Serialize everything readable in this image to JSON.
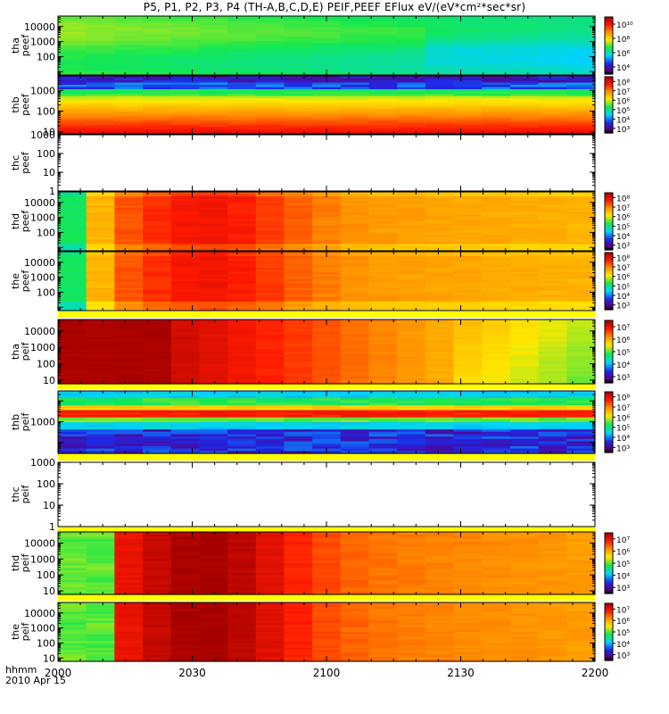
{
  "title": "P5, P1, P2, P3, P4 (TH-A,B,C,D,E) PEIF,PEEF EFlux eV/(eV*cm²*sec*sr)",
  "x_label_hhmm": "hhmm",
  "x_label_date": "2010 Apr 15",
  "colors": {
    "deep_red": "#a80000",
    "red": "#ff1a00",
    "orange": "#ff8c00",
    "yellow": "#ffe800",
    "green": "#18e850",
    "cyan": "#00d8ff",
    "blue": "#1840e8",
    "black": "#000000",
    "highlight": "#ffff00"
  },
  "chart_data": {
    "type": "heatmap",
    "title": "P5, P1, P2, P3, P4 (TH-A,B,C,D,E) PEIF,PEEF EFlux eV/(eV*cm²*sec*sr)",
    "x_ticks": [
      "2000",
      "2030",
      "2100",
      "2130",
      "2200"
    ],
    "x_range": [
      "20:00",
      "22:00"
    ],
    "panels": [
      {
        "label": "tha peef",
        "ylim": [
          6,
          50000
        ],
        "y_scale": "log",
        "yticks": [
          "10000",
          "1000",
          "100"
        ],
        "colorbar_ticks": [
          "10¹⁰",
          "10⁸",
          "10⁶",
          "10⁴"
        ],
        "description": "green spectrogram, brighter green early, cyan-green later"
      },
      {
        "label": "thb peef",
        "ylim": [
          8,
          5000
        ],
        "y_scale": "log",
        "yticks": [
          "1000",
          "100",
          "10"
        ],
        "colorbar_ticks": [
          "10⁸",
          "10⁷",
          "10⁶",
          "10⁵",
          "10⁴",
          "10³"
        ],
        "description": "blue/black top band, green-yellow-orange-red toward low energy"
      },
      {
        "label": "thc peef",
        "ylim": [
          1,
          1000
        ],
        "y_scale": "log",
        "yticks": [
          "1000",
          "100",
          "10",
          "1"
        ],
        "description": "no data"
      },
      {
        "label": "thd peef",
        "ylim": [
          6,
          50000
        ],
        "y_scale": "log",
        "yticks": [
          "10000",
          "1000",
          "100"
        ],
        "colorbar_ticks": [
          "10⁸",
          "10⁷",
          "10⁶",
          "10⁵",
          "10⁴",
          "10³"
        ],
        "description": "yellow-green early, red peak 2010-2040, orange-yellow later"
      },
      {
        "label": "the peef",
        "ylim": [
          6,
          50000
        ],
        "y_scale": "log",
        "yticks": [
          "10000",
          "1000",
          "100"
        ],
        "colorbar_ticks": [
          "10⁸",
          "10⁷",
          "10⁶",
          "10⁵",
          "10⁴",
          "10³"
        ],
        "description": "yellow-green early, red peak 2010-2040, orange-yellow later"
      },
      {
        "label": "tha peif",
        "ylim": [
          6,
          50000
        ],
        "y_scale": "log",
        "yticks": [
          "10000",
          "1000",
          "100",
          "10"
        ],
        "colorbar_ticks": [
          "10⁷",
          "10⁶",
          "10⁵",
          "10⁴",
          "10³"
        ],
        "description": "deep red early fading to orange, yellow and green late"
      },
      {
        "label": "thb peif",
        "ylim": [
          30,
          30000
        ],
        "y_scale": "log",
        "yticks": [
          "1000"
        ],
        "colorbar_ticks": [
          "10⁸",
          "10⁷",
          "10⁶",
          "10⁵",
          "10⁴",
          "10³"
        ],
        "description": "horizontal bands: cyan top, yellow/red middle, blue/black bottom"
      },
      {
        "label": "thc peif",
        "ylim": [
          1,
          1000
        ],
        "y_scale": "log",
        "yticks": [
          "1000",
          "100",
          "10",
          "1"
        ],
        "description": "no data"
      },
      {
        "label": "thd peif",
        "ylim": [
          6,
          50000
        ],
        "y_scale": "log",
        "yticks": [
          "10000",
          "1000",
          "100",
          "10"
        ],
        "colorbar_ticks": [
          "10⁷",
          "10⁶",
          "10⁵",
          "10⁴",
          "10³"
        ],
        "description": "green early, deep red peak 2010-2050, orange then yellow later"
      },
      {
        "label": "the peif",
        "ylim": [
          6,
          50000
        ],
        "y_scale": "log",
        "yticks": [
          "10000",
          "1000",
          "100",
          "10"
        ],
        "colorbar_ticks": [
          "10⁷",
          "10⁶",
          "10⁵",
          "10⁴",
          "10³"
        ],
        "description": "green early, deep red peak 2010-2050, orange then yellow later"
      }
    ]
  }
}
